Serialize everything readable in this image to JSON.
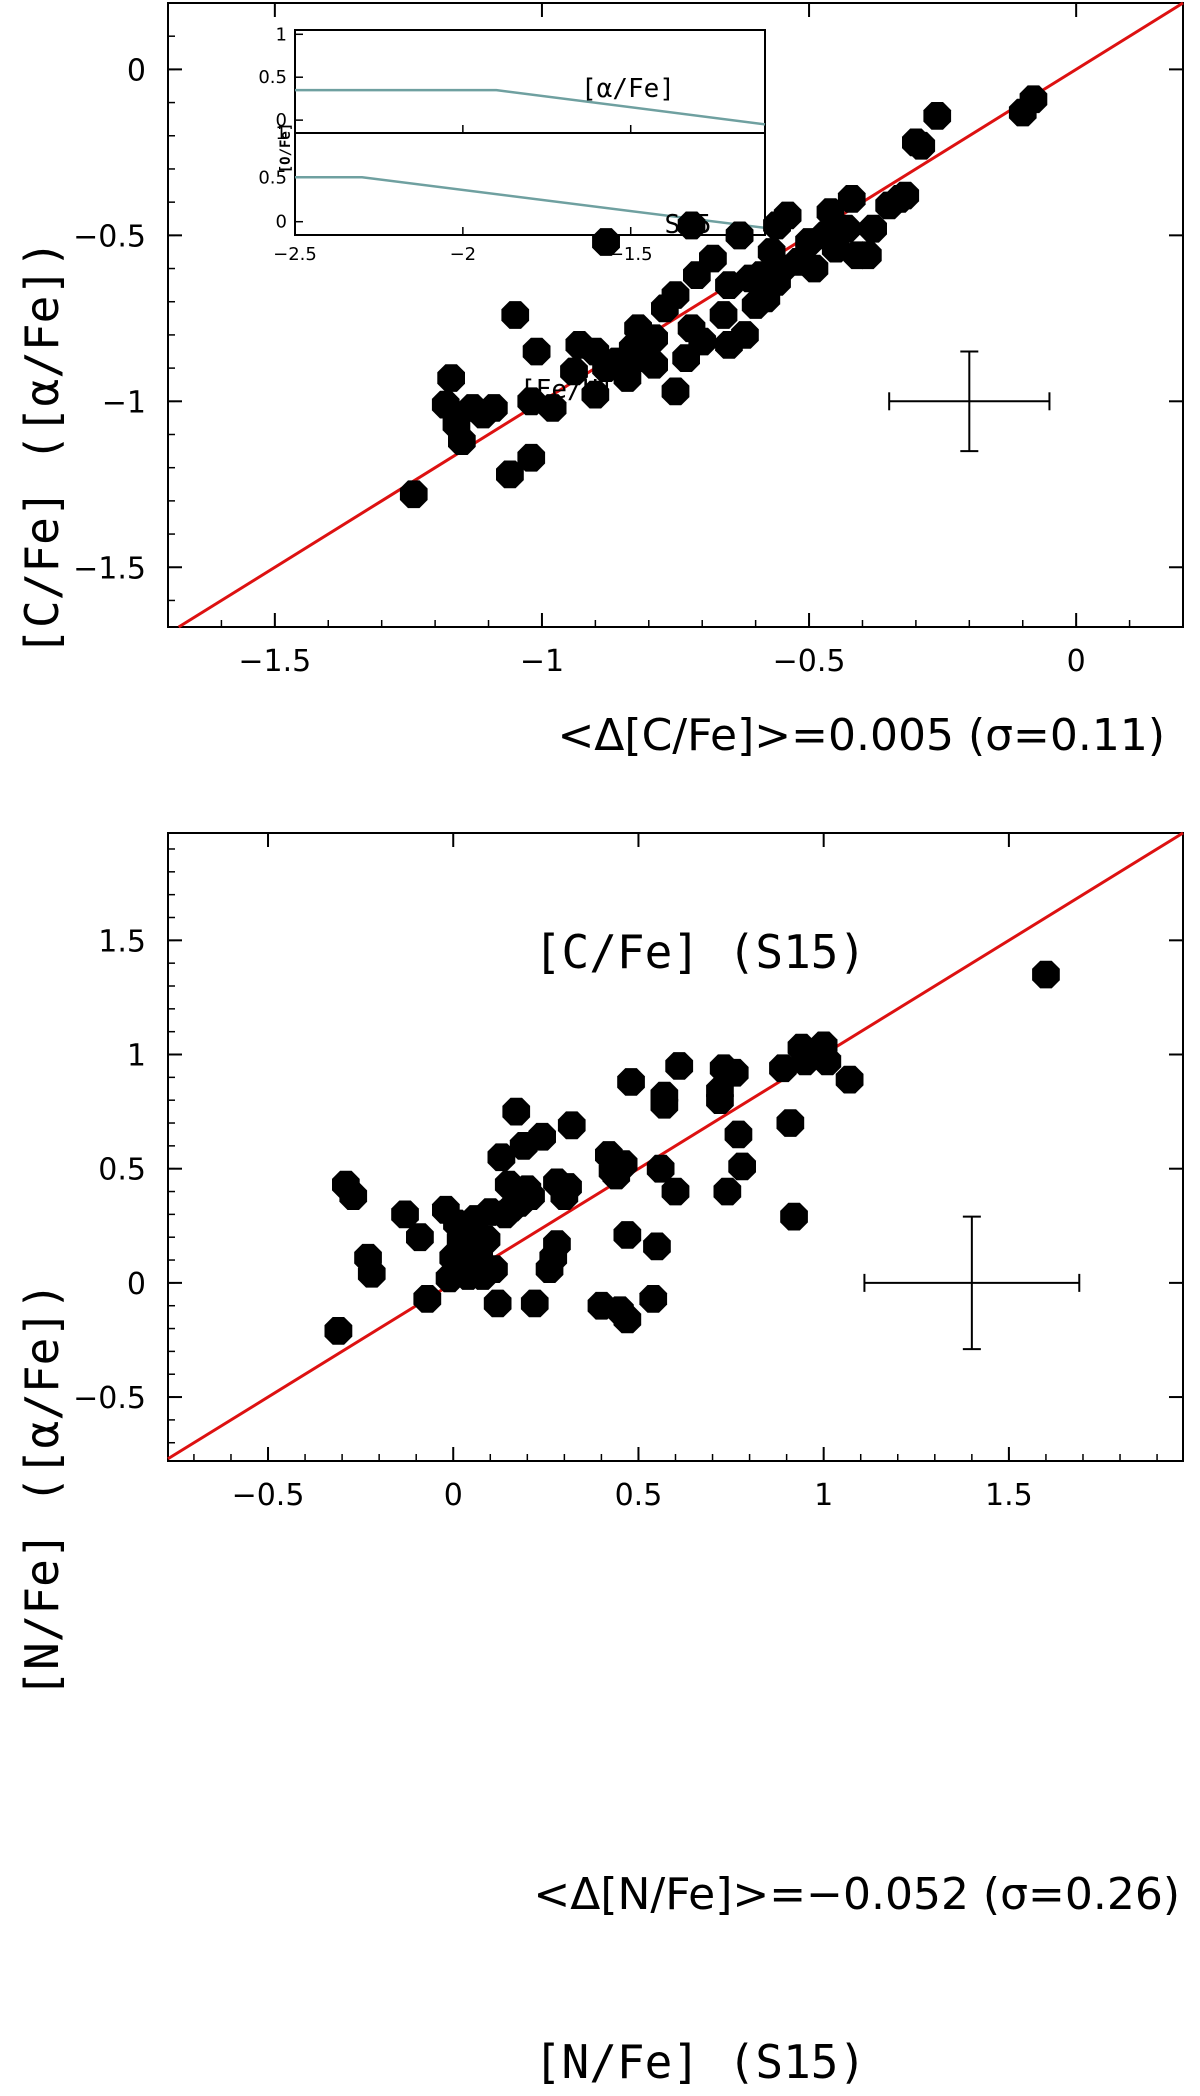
{
  "colors": {
    "identity_line": "#dd1111",
    "points": "#000000",
    "inset_line": "#6fa0a0",
    "frame": "#000000"
  },
  "chart_data": [
    {
      "type": "scatter",
      "id": "carbon",
      "xlabel": "[C/Fe] (S15)",
      "ylabel": "[C/Fe] ([α/Fe])",
      "xlim": [
        -1.7,
        0.2
      ],
      "ylim": [
        -1.68,
        0.2
      ],
      "xticks": [
        -1.5,
        -1,
        -0.5,
        0
      ],
      "xtick_labels": [
        "−1.5",
        "−1",
        "−0.5",
        "0"
      ],
      "yticks": [
        -1.5,
        -1,
        -0.5,
        0
      ],
      "ytick_labels": [
        "−1.5",
        "−1",
        "−0.5",
        "0"
      ],
      "annotation": "<Δ[C/Fe]>=0.005 (σ=0.11)",
      "identity_line": true,
      "errorbar": {
        "x": -0.2,
        "y": -1.0,
        "xerr": 0.15,
        "yerr": 0.15
      },
      "points": [
        [
          -1.24,
          -1.28
        ],
        [
          -1.18,
          -1.01
        ],
        [
          -1.17,
          -0.93
        ],
        [
          -1.16,
          -1.07
        ],
        [
          -1.15,
          -1.12
        ],
        [
          -1.13,
          -1.02
        ],
        [
          -1.11,
          -1.04
        ],
        [
          -1.09,
          -1.02
        ],
        [
          -1.06,
          -1.22
        ],
        [
          -1.05,
          -0.74
        ],
        [
          -1.02,
          -1.17
        ],
        [
          -1.02,
          -1.0
        ],
        [
          -1.01,
          -0.85
        ],
        [
          -0.98,
          -1.02
        ],
        [
          -0.94,
          -0.91
        ],
        [
          -0.93,
          -0.83
        ],
        [
          -0.9,
          -0.98
        ],
        [
          -0.9,
          -0.85
        ],
        [
          -0.88,
          -0.52
        ],
        [
          -0.88,
          -0.9
        ],
        [
          -0.86,
          -0.88
        ],
        [
          -0.84,
          -0.93
        ],
        [
          -0.83,
          -0.84
        ],
        [
          -0.82,
          -0.78
        ],
        [
          -0.81,
          -0.87
        ],
        [
          -0.79,
          -0.89
        ],
        [
          -0.79,
          -0.81
        ],
        [
          -0.77,
          -0.72
        ],
        [
          -0.75,
          -0.97
        ],
        [
          -0.75,
          -0.68
        ],
        [
          -0.73,
          -0.87
        ],
        [
          -0.72,
          -0.78
        ],
        [
          -0.72,
          -0.47
        ],
        [
          -0.71,
          -0.62
        ],
        [
          -0.7,
          -0.82
        ],
        [
          -0.68,
          -0.57
        ],
        [
          -0.66,
          -0.74
        ],
        [
          -0.65,
          -0.65
        ],
        [
          -0.65,
          -0.83
        ],
        [
          -0.63,
          -0.5
        ],
        [
          -0.62,
          -0.8
        ],
        [
          -0.61,
          -0.63
        ],
        [
          -0.6,
          -0.71
        ],
        [
          -0.59,
          -0.62
        ],
        [
          -0.58,
          -0.69
        ],
        [
          -0.57,
          -0.55
        ],
        [
          -0.56,
          -0.64
        ],
        [
          -0.56,
          -0.47
        ],
        [
          -0.55,
          -0.6
        ],
        [
          -0.54,
          -0.44
        ],
        [
          -0.52,
          -0.58
        ],
        [
          -0.5,
          -0.52
        ],
        [
          -0.49,
          -0.6
        ],
        [
          -0.47,
          -0.5
        ],
        [
          -0.46,
          -0.43
        ],
        [
          -0.45,
          -0.54
        ],
        [
          -0.43,
          -0.48
        ],
        [
          -0.42,
          -0.39
        ],
        [
          -0.41,
          -0.56
        ],
        [
          -0.39,
          -0.56
        ],
        [
          -0.38,
          -0.48
        ],
        [
          -0.35,
          -0.41
        ],
        [
          -0.33,
          -0.39
        ],
        [
          -0.32,
          -0.38
        ],
        [
          -0.3,
          -0.22
        ],
        [
          -0.29,
          -0.23
        ],
        [
          -0.26,
          -0.14
        ],
        [
          -0.1,
          -0.13
        ],
        [
          -0.08,
          -0.09
        ]
      ]
    },
    {
      "type": "scatter",
      "id": "nitrogen",
      "xlabel": "[N/Fe] (S15)",
      "ylabel": "[N/Fe] ([α/Fe])",
      "xlim": [
        -0.77,
        1.97
      ],
      "ylim": [
        -0.78,
        1.97
      ],
      "xticks": [
        -0.5,
        0,
        0.5,
        1,
        1.5
      ],
      "xtick_labels": [
        "−0.5",
        "0",
        "0.5",
        "1",
        "1.5"
      ],
      "yticks": [
        -0.5,
        0,
        0.5,
        1,
        1.5
      ],
      "ytick_labels": [
        "−0.5",
        "0",
        "0.5",
        "1",
        "1.5"
      ],
      "annotation": "<Δ[N/Fe]>=−0.052 (σ=0.26)",
      "identity_line": true,
      "errorbar": {
        "x": 1.4,
        "y": 0.0,
        "xerr": 0.29,
        "yerr": 0.29
      },
      "points": [
        [
          -0.31,
          -0.21
        ],
        [
          -0.29,
          0.43
        ],
        [
          -0.27,
          0.38
        ],
        [
          -0.23,
          0.11
        ],
        [
          -0.22,
          0.04
        ],
        [
          -0.13,
          0.3
        ],
        [
          -0.09,
          0.2
        ],
        [
          -0.07,
          -0.07
        ],
        [
          -0.02,
          0.32
        ],
        [
          -0.01,
          0.02
        ],
        [
          0.0,
          0.11
        ],
        [
          0.01,
          0.26
        ],
        [
          0.02,
          0.19
        ],
        [
          0.03,
          0.16
        ],
        [
          0.04,
          0.03
        ],
        [
          0.05,
          0.24
        ],
        [
          0.06,
          0.28
        ],
        [
          0.07,
          0.12
        ],
        [
          0.08,
          0.03
        ],
        [
          0.09,
          0.19
        ],
        [
          0.1,
          0.31
        ],
        [
          0.11,
          0.06
        ],
        [
          0.12,
          -0.09
        ],
        [
          0.13,
          0.55
        ],
        [
          0.14,
          0.3
        ],
        [
          0.15,
          0.43
        ],
        [
          0.16,
          0.33
        ],
        [
          0.17,
          0.75
        ],
        [
          0.18,
          0.35
        ],
        [
          0.19,
          0.6
        ],
        [
          0.2,
          0.41
        ],
        [
          0.21,
          0.38
        ],
        [
          0.22,
          -0.09
        ],
        [
          0.24,
          0.64
        ],
        [
          0.26,
          0.06
        ],
        [
          0.27,
          0.11
        ],
        [
          0.28,
          0.17
        ],
        [
          0.28,
          0.44
        ],
        [
          0.3,
          0.38
        ],
        [
          0.31,
          0.42
        ],
        [
          0.32,
          0.69
        ],
        [
          0.4,
          -0.1
        ],
        [
          0.42,
          0.56
        ],
        [
          0.43,
          0.49
        ],
        [
          0.44,
          0.47
        ],
        [
          0.45,
          -0.12
        ],
        [
          0.46,
          0.52
        ],
        [
          0.47,
          0.21
        ],
        [
          0.47,
          -0.16
        ],
        [
          0.48,
          0.88
        ],
        [
          0.54,
          -0.07
        ],
        [
          0.55,
          0.16
        ],
        [
          0.56,
          0.5
        ],
        [
          0.57,
          0.82
        ],
        [
          0.57,
          0.78
        ],
        [
          0.6,
          0.4
        ],
        [
          0.61,
          0.95
        ],
        [
          0.72,
          0.84
        ],
        [
          0.72,
          0.8
        ],
        [
          0.73,
          0.94
        ],
        [
          0.74,
          0.4
        ],
        [
          0.76,
          0.92
        ],
        [
          0.77,
          0.65
        ],
        [
          0.78,
          0.51
        ],
        [
          0.89,
          0.94
        ],
        [
          0.91,
          0.7
        ],
        [
          0.92,
          0.29
        ],
        [
          0.94,
          1.03
        ],
        [
          0.95,
          0.97
        ],
        [
          0.98,
          1.0
        ],
        [
          1.0,
          1.04
        ],
        [
          1.01,
          0.97
        ],
        [
          1.07,
          0.89
        ],
        [
          1.6,
          1.35
        ]
      ]
    }
  ],
  "inset": {
    "xlabel": "[Fe/H]",
    "ylabel": "[O/Fe]",
    "xlim": [
      -2.5,
      -1.1
    ],
    "xticks": [
      -2.5,
      -2,
      -1.5
    ],
    "xtick_labels": [
      "−2.5",
      "−2",
      "−1.5"
    ],
    "yticks": [
      0,
      0.5,
      1
    ],
    "ytick_labels": [
      "0",
      "0.5",
      "1"
    ],
    "panels": [
      {
        "label": "[α/Fe]",
        "ylim": [
          -0.15,
          1.05
        ],
        "line": [
          [
            -2.5,
            0.35
          ],
          [
            -1.9,
            0.35
          ],
          [
            -1.1,
            -0.05
          ]
        ]
      },
      {
        "label": "S15",
        "ylim": [
          -0.15,
          1.0
        ],
        "line": [
          [
            -2.5,
            0.5
          ],
          [
            -2.3,
            0.5
          ],
          [
            -1.1,
            -0.07
          ]
        ]
      }
    ]
  }
}
